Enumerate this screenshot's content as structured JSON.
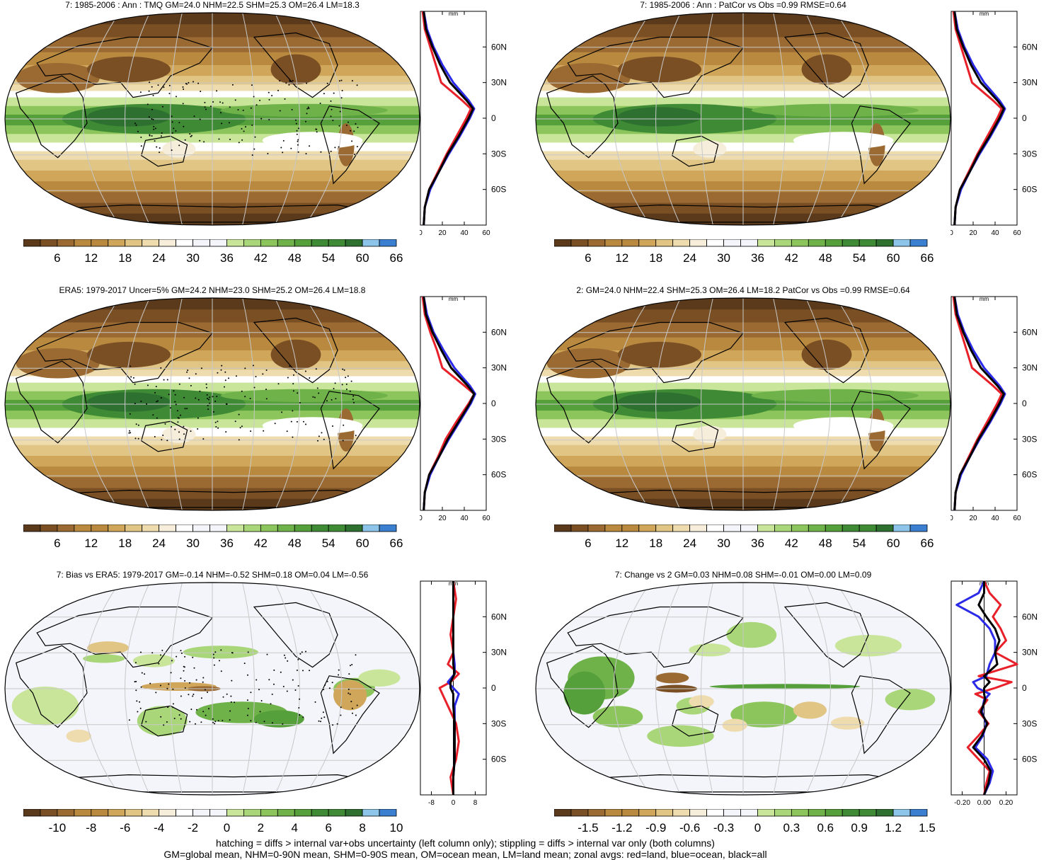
{
  "colors": {
    "palette": [
      "#5a3a1a",
      "#7a4f24",
      "#9a6a32",
      "#b8893f",
      "#cfa65a",
      "#e0c585",
      "#eedcae",
      "#f6eedb",
      "#ffffff",
      "#f4f4fb",
      "#c8e59a",
      "#a8d678",
      "#8cc55c",
      "#6fb24a",
      "#56a03c",
      "#3f8a34",
      "#2d7030",
      "#8cc4ea",
      "#3b7fd0"
    ],
    "land_line": "#e8202a",
    "ocean_line": "#2a2ae8",
    "all_line": "#000000",
    "graticule": "#c8c8c8"
  },
  "panels": [
    {
      "id": "p1",
      "title": "7: 1985-2006 : Ann : TMQ GM=24.0 NHM=22.5 SHM=25.3 OM=26.4 LM=18.3",
      "field": "tmq",
      "colorbar_labels": [
        "6",
        "12",
        "18",
        "24",
        "30",
        "36",
        "42",
        "48",
        "54",
        "60",
        "66"
      ],
      "zonal_units": "mm",
      "zonal_ticks": [
        "0",
        "20",
        "40",
        "60"
      ],
      "lat_labels": [
        "60N",
        "30N",
        "0",
        "30S",
        "60S"
      ]
    },
    {
      "id": "p2",
      "title": "7: 1985-2006 : Ann : PatCor vs Obs =0.99 RMSE=0.64",
      "field": "tmq",
      "colorbar_labels": [
        "6",
        "12",
        "18",
        "24",
        "30",
        "36",
        "42",
        "48",
        "54",
        "60",
        "66"
      ],
      "zonal_units": "mm",
      "zonal_ticks": [
        "0",
        "20",
        "40",
        "60"
      ],
      "lat_labels": [
        "60N",
        "30N",
        "0",
        "30S",
        "60S"
      ]
    },
    {
      "id": "p3",
      "title": "ERA5: 1979-2017 Uncer=5% GM=24.2 NHM=23.0 SHM=25.2 OM=26.4 LM=18.8",
      "field": "tmq",
      "colorbar_labels": [
        "6",
        "12",
        "18",
        "24",
        "30",
        "36",
        "42",
        "48",
        "54",
        "60",
        "66"
      ],
      "zonal_units": "mm",
      "zonal_ticks": [
        "0",
        "20",
        "40",
        "60"
      ],
      "lat_labels": [
        "60N",
        "30N",
        "0",
        "30S",
        "60S"
      ]
    },
    {
      "id": "p4",
      "title": "2: GM=24.0 NHM=22.4 SHM=25.3 OM=26.4 LM=18.2 PatCor vs Obs =0.99 RMSE=0.64",
      "field": "tmq",
      "colorbar_labels": [
        "6",
        "12",
        "18",
        "24",
        "30",
        "36",
        "42",
        "48",
        "54",
        "60",
        "66"
      ],
      "zonal_units": "mm",
      "zonal_ticks": [
        "0",
        "20",
        "40",
        "60"
      ],
      "lat_labels": [
        "60N",
        "30N",
        "0",
        "30S",
        "60S"
      ]
    },
    {
      "id": "p5",
      "title": "7: Bias vs ERA5: 1979-2017 GM=-0.14 NHM=-0.52 SHM=0.18 OM=0.04 LM=-0.56",
      "field": "bias",
      "colorbar_labels": [
        "-10",
        "-8",
        "-6",
        "-4",
        "-2",
        "0",
        "2",
        "4",
        "6",
        "8",
        "10"
      ],
      "zonal_units": "mm",
      "zonal_ticks": [
        "-8",
        "0",
        "8"
      ],
      "lat_labels": [
        "60N",
        "30N",
        "0",
        "30S",
        "60S"
      ]
    },
    {
      "id": "p6",
      "title": "7: Change vs 2 GM=0.03 NHM=0.08 SHM=-0.01 OM=0.00 LM=0.09",
      "field": "change",
      "colorbar_labels": [
        "-1.5",
        "-1.2",
        "-0.9",
        "-0.6",
        "-0.3",
        "0",
        "0.3",
        "0.6",
        "0.9",
        "1.2",
        "1.5"
      ],
      "zonal_units": "mm",
      "zonal_ticks": [
        "-0.20",
        "0.00",
        "0.20"
      ],
      "lat_labels": [
        "60N",
        "30N",
        "0",
        "30S",
        "60S"
      ]
    }
  ],
  "footer": {
    "line1": "hatching = diffs > internal var+obs uncertainty (left column only); stippling = diffs > internal var only (both columns)",
    "line2": "GM=global mean, NHM=0-90N mean, SHM=0-90S mean, OM=ocean mean, LM=land mean; zonal avgs: red=land, blue=ocean, black=all"
  },
  "chart_data": [
    {
      "type": "line",
      "title": "7: 1985-2006 : Ann : TMQ GM=24.0 NHM=22.5 SHM=25.3 OM=26.4 LM=18.3",
      "xlabel": "mm",
      "ylabel": "",
      "xlim": [
        0,
        60
      ],
      "ylim": [
        -90,
        90
      ],
      "y": [
        -90,
        -75,
        -60,
        -45,
        -30,
        -15,
        0,
        8,
        15,
        30,
        45,
        60,
        75,
        90
      ],
      "series": [
        {
          "name": "red=land",
          "x": [
            3,
            4,
            8,
            16,
            24,
            33,
            42,
            46,
            38,
            19,
            14,
            9,
            4,
            2
          ]
        },
        {
          "name": "blue=ocean",
          "x": [
            3,
            4,
            9,
            17,
            26,
            36,
            45,
            49,
            44,
            30,
            20,
            12,
            6,
            3
          ]
        },
        {
          "name": "black=all",
          "x": [
            3,
            4,
            8,
            17,
            25,
            35,
            44,
            48,
            42,
            27,
            18,
            11,
            5,
            3
          ]
        }
      ]
    },
    {
      "type": "line",
      "title": "7: 1985-2006 : Ann : PatCor vs Obs =0.99 RMSE=0.64",
      "xlabel": "mm",
      "ylabel": "",
      "xlim": [
        0,
        60
      ],
      "ylim": [
        -90,
        90
      ],
      "y": [
        -90,
        -75,
        -60,
        -45,
        -30,
        -15,
        0,
        8,
        15,
        30,
        45,
        60,
        75,
        90
      ],
      "series": [
        {
          "name": "red=land",
          "x": [
            3,
            4,
            8,
            16,
            24,
            33,
            42,
            46,
            38,
            19,
            14,
            9,
            4,
            2
          ]
        },
        {
          "name": "blue=ocean",
          "x": [
            3,
            4,
            9,
            17,
            26,
            36,
            45,
            49,
            44,
            30,
            20,
            12,
            6,
            3
          ]
        },
        {
          "name": "black=all",
          "x": [
            3,
            4,
            8,
            17,
            25,
            35,
            44,
            48,
            42,
            27,
            18,
            11,
            5,
            3
          ]
        }
      ]
    },
    {
      "type": "line",
      "title": "ERA5: 1979-2017 Uncer=5% GM=24.2 NHM=23.0 SHM=25.2 OM=26.4 LM=18.8",
      "xlabel": "mm",
      "ylabel": "",
      "xlim": [
        0,
        60
      ],
      "ylim": [
        -90,
        90
      ],
      "y": [
        -90,
        -75,
        -60,
        -45,
        -30,
        -15,
        0,
        8,
        15,
        30,
        45,
        60,
        75,
        90
      ],
      "series": [
        {
          "name": "red=land",
          "x": [
            3,
            4,
            8,
            16,
            23,
            33,
            44,
            49,
            40,
            20,
            15,
            9,
            4,
            2
          ]
        },
        {
          "name": "blue=ocean",
          "x": [
            3,
            4,
            9,
            17,
            26,
            36,
            46,
            50,
            45,
            31,
            21,
            12,
            6,
            3
          ]
        },
        {
          "name": "black=all",
          "x": [
            3,
            4,
            8,
            17,
            25,
            35,
            45,
            49,
            43,
            28,
            19,
            11,
            5,
            3
          ]
        }
      ]
    },
    {
      "type": "line",
      "title": "2: GM=24.0 NHM=22.4 SHM=25.3 OM=26.4 LM=18.2 PatCor vs Obs =0.99 RMSE=0.64",
      "xlabel": "mm",
      "ylabel": "",
      "xlim": [
        0,
        60
      ],
      "ylim": [
        -90,
        90
      ],
      "y": [
        -90,
        -75,
        -60,
        -45,
        -30,
        -15,
        0,
        8,
        15,
        30,
        45,
        60,
        75,
        90
      ],
      "series": [
        {
          "name": "red=land",
          "x": [
            3,
            4,
            8,
            16,
            24,
            33,
            42,
            46,
            38,
            19,
            14,
            9,
            4,
            2
          ]
        },
        {
          "name": "blue=ocean",
          "x": [
            3,
            4,
            9,
            17,
            26,
            36,
            45,
            49,
            44,
            30,
            20,
            12,
            6,
            3
          ]
        },
        {
          "name": "black=all",
          "x": [
            3,
            4,
            8,
            17,
            25,
            35,
            44,
            48,
            42,
            27,
            18,
            11,
            5,
            3
          ]
        }
      ]
    },
    {
      "type": "line",
      "title": "7: Bias vs ERA5: 1979-2017 GM=-0.14 NHM=-0.52 SHM=0.18 OM=0.04 LM=-0.56",
      "xlabel": "mm",
      "ylabel": "",
      "xlim": [
        -12,
        12
      ],
      "ylim": [
        -90,
        90
      ],
      "y": [
        -90,
        -75,
        -60,
        -45,
        -30,
        -15,
        -5,
        0,
        5,
        12,
        20,
        30,
        45,
        60,
        75,
        90
      ],
      "series": [
        {
          "name": "red=land",
          "x": [
            0,
            -1,
            1,
            2,
            1,
            -2,
            -4,
            -5,
            -1,
            2,
            -2,
            0,
            -1,
            0,
            1,
            0
          ]
        },
        {
          "name": "blue=ocean",
          "x": [
            0,
            0,
            0.5,
            0.5,
            0.5,
            0.5,
            2,
            0,
            -2,
            0.5,
            0.5,
            0,
            0,
            0,
            0,
            0
          ]
        },
        {
          "name": "black=all",
          "x": [
            0,
            0,
            0.5,
            0.5,
            0.5,
            0,
            0,
            -1,
            -1,
            0.5,
            0,
            0,
            0,
            0,
            0,
            0
          ]
        }
      ]
    },
    {
      "type": "line",
      "title": "7: Change vs 2 GM=0.03 NHM=0.08 SHM=-0.01 OM=0.00 LM=0.09",
      "xlabel": "mm",
      "ylabel": "",
      "xlim": [
        -0.3,
        0.3
      ],
      "ylim": [
        -90,
        90
      ],
      "y": [
        -90,
        -80,
        -70,
        -60,
        -50,
        -40,
        -30,
        -20,
        -10,
        -5,
        0,
        5,
        10,
        20,
        30,
        40,
        50,
        60,
        70,
        80,
        90
      ],
      "series": [
        {
          "name": "red=land",
          "x": [
            0,
            0.02,
            0.05,
            -0.05,
            -0.15,
            -0.05,
            0.04,
            -0.05,
            0.03,
            -0.08,
            0.1,
            0.25,
            -0.05,
            0.3,
            0.1,
            0.2,
            0.15,
            0.08,
            0.15,
            0.05,
            0
          ]
        },
        {
          "name": "blue=ocean",
          "x": [
            0,
            0.05,
            0.08,
            0.03,
            -0.08,
            -0.01,
            0.02,
            -0.02,
            0,
            0.05,
            -0.06,
            -0.1,
            0.02,
            0.05,
            0.1,
            0.1,
            0.05,
            -0.05,
            -0.25,
            -0.05,
            0
          ]
        },
        {
          "name": "black=all",
          "x": [
            0,
            0.04,
            0.06,
            0,
            -0.1,
            -0.02,
            0.03,
            -0.03,
            0.01,
            0,
            0,
            0.05,
            0,
            0.12,
            0.1,
            0.14,
            0.1,
            0.02,
            -0.05,
            0,
            0
          ]
        }
      ]
    }
  ]
}
